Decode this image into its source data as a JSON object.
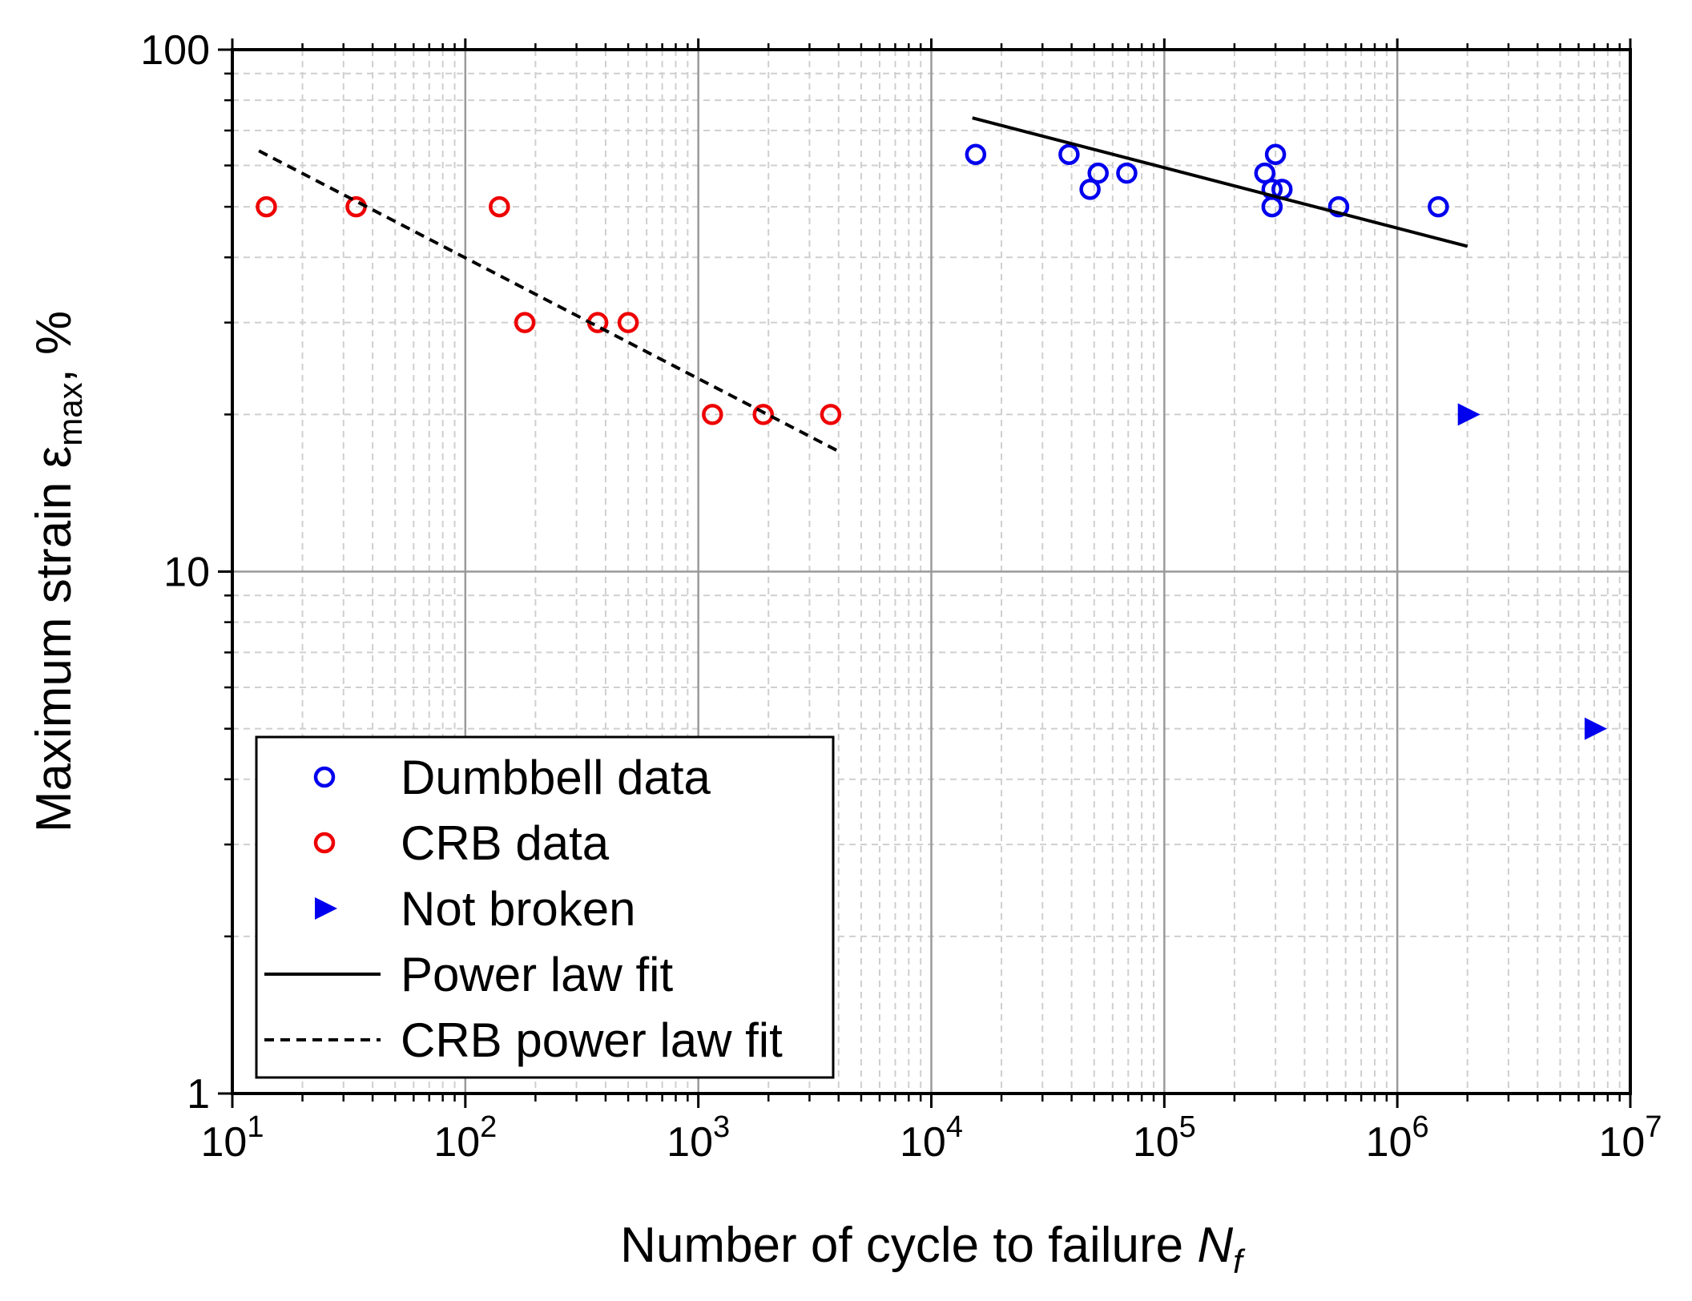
{
  "chart_data": {
    "type": "scatter",
    "x_scale": "log",
    "y_scale": "log",
    "xlim": [
      10,
      10000000
    ],
    "ylim": [
      1,
      100
    ],
    "grid": true,
    "xlabel": {
      "text": "Number of cycle to failure ",
      "italic": "N",
      "sub": "f"
    },
    "ylabel": {
      "text": "Maximum strain ε",
      "sub": "max",
      "suffix": ", %"
    },
    "x_ticks": [
      {
        "value": 10,
        "base": "10",
        "exp": "1"
      },
      {
        "value": 100,
        "base": "10",
        "exp": "2"
      },
      {
        "value": 1000,
        "base": "10",
        "exp": "3"
      },
      {
        "value": 10000,
        "base": "10",
        "exp": "4"
      },
      {
        "value": 100000,
        "base": "10",
        "exp": "5"
      },
      {
        "value": 1000000,
        "base": "10",
        "exp": "6"
      },
      {
        "value": 10000000,
        "base": "10",
        "exp": "7"
      }
    ],
    "y_ticks": [
      {
        "value": 1,
        "label": "1"
      },
      {
        "value": 10,
        "label": "10"
      },
      {
        "value": 100,
        "label": "100"
      }
    ],
    "series": [
      {
        "name": "Dumbbell data",
        "marker": "open-circle",
        "color": "#0000ee",
        "points": [
          [
            15500,
            63
          ],
          [
            39000,
            63
          ],
          [
            48000,
            54
          ],
          [
            52000,
            58
          ],
          [
            69000,
            58
          ],
          [
            270000,
            58
          ],
          [
            290000,
            54
          ],
          [
            300000,
            63
          ],
          [
            290000,
            50
          ],
          [
            320000,
            54
          ],
          [
            560000,
            50
          ],
          [
            1500000,
            50
          ]
        ]
      },
      {
        "name": "CRB data",
        "marker": "open-circle",
        "color": "#ee0000",
        "points": [
          [
            14,
            50
          ],
          [
            34,
            50
          ],
          [
            140,
            50
          ],
          [
            180,
            30
          ],
          [
            370,
            30
          ],
          [
            500,
            30
          ],
          [
            1150,
            20
          ],
          [
            1900,
            20
          ],
          [
            3700,
            20
          ]
        ]
      },
      {
        "name": "Not broken",
        "marker": "triangle-right",
        "color": "#0000ee",
        "points": [
          [
            2000000,
            20
          ],
          [
            7000000,
            5
          ]
        ]
      },
      {
        "name": "Power law fit",
        "type": "line",
        "style": "solid",
        "color": "#000000",
        "points": [
          [
            15000,
            74
          ],
          [
            2000000,
            42
          ]
        ]
      },
      {
        "name": "CRB power law fit",
        "type": "line",
        "style": "dashed",
        "color": "#000000",
        "points": [
          [
            13,
            64
          ],
          [
            4000,
            17
          ]
        ]
      }
    ],
    "legend": {
      "placement": "bottom-left",
      "entries": [
        {
          "label": "Dumbbell data",
          "series": "Dumbbell data"
        },
        {
          "label": "CRB data",
          "series": "CRB data"
        },
        {
          "label": "Not broken",
          "series": "Not broken"
        },
        {
          "label": "Power law fit",
          "series": "Power law fit"
        },
        {
          "label": "CRB power law fit",
          "series": "CRB power law fit"
        }
      ]
    }
  }
}
